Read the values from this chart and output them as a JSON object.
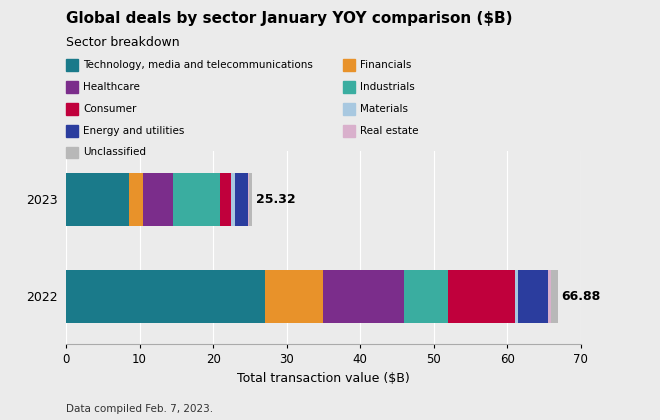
{
  "title": "Global deals by sector January YOY comparison ($B)",
  "subtitle": "Sector breakdown",
  "footer": "Data compiled Feb. 7, 2023.",
  "xlabel": "Total transaction value ($B)",
  "years": [
    "2023",
    "2022"
  ],
  "sectors": [
    "Technology, media and telecommunications",
    "Financials",
    "Healthcare",
    "Industrials",
    "Consumer",
    "Materials",
    "Energy and utilities",
    "Real estate",
    "Unclassified"
  ],
  "colors": [
    "#1a7a8a",
    "#e8922a",
    "#7b2d8b",
    "#3aada0",
    "#c0003c",
    "#a8c8e0",
    "#2b3d9e",
    "#d9b0cc",
    "#b8b8b8"
  ],
  "values_2023": [
    8.5,
    2.0,
    4.0,
    6.5,
    1.5,
    0.5,
    1.8,
    0.02,
    0.5
  ],
  "values_2022": [
    27.0,
    8.0,
    11.0,
    6.0,
    9.0,
    0.5,
    4.0,
    0.5,
    0.88
  ],
  "total_2023": 25.32,
  "total_2022": 66.88,
  "xlim": [
    0,
    70
  ],
  "xticks": [
    0,
    10,
    20,
    30,
    40,
    50,
    60,
    70
  ],
  "background_color": "#ebebeb",
  "bar_height": 0.55
}
